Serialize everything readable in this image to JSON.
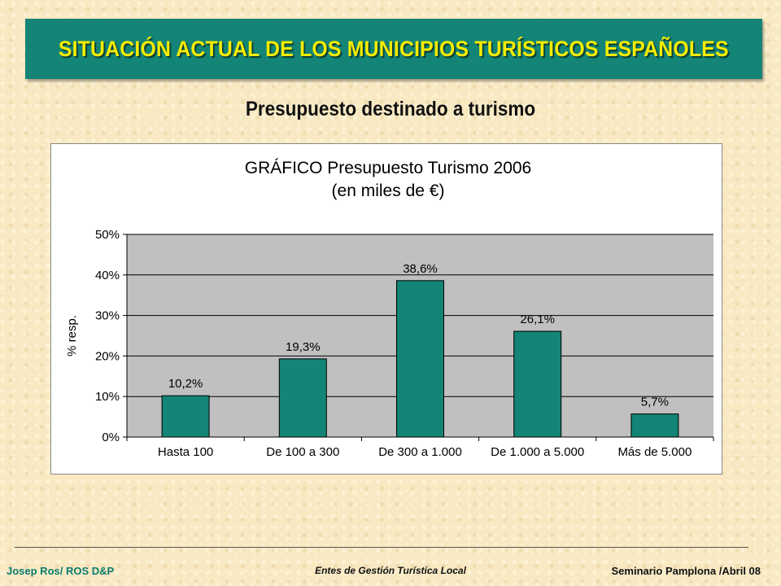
{
  "slide": {
    "banner_title": "SITUACIÓN ACTUAL DE LOS MUNICIPIOS TURÍSTICOS ESPAÑOLES",
    "subtitle": "Presupuesto destinado a turismo"
  },
  "footer": {
    "left": "Josep Ros/ ROS D&P",
    "center": "Entes de Gestión Turística Local",
    "right": "Seminario Pamplona /Abril 08"
  },
  "colors": {
    "banner": "#138475",
    "banner_text": "#f5ec00",
    "bar": "#138475",
    "plot_background": "#c0c0c0"
  },
  "chart_data": {
    "type": "bar",
    "title": "GRÁFICO Presupuesto Turismo 2006",
    "subtitle": "(en miles de €)",
    "xlabel": "",
    "ylabel": "% resp.",
    "categories": [
      "Hasta 100",
      "De 100 a 300",
      "De 300 a 1.000",
      "De 1.000 a 5.000",
      "Más de 5.000"
    ],
    "values": [
      10.2,
      19.3,
      38.6,
      26.1,
      5.7
    ],
    "data_labels": [
      "10,2%",
      "19,3%",
      "38,6%",
      "26,1%",
      "5,7%"
    ],
    "ylim": [
      0,
      50
    ],
    "yticks": [
      0,
      10,
      20,
      30,
      40,
      50
    ],
    "ytick_labels": [
      "0%",
      "10%",
      "20%",
      "30%",
      "40%",
      "50%"
    ],
    "grid": true,
    "legend": "none"
  }
}
